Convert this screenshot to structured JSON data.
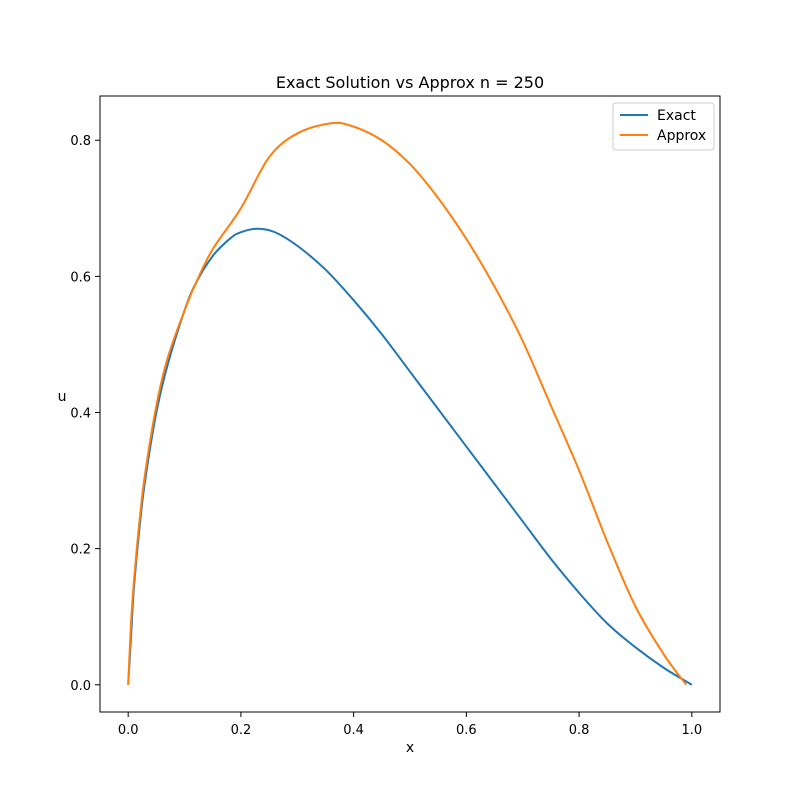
{
  "chart_data": {
    "type": "line",
    "title": "Exact Solution vs Approx n = 250",
    "xlabel": "x",
    "ylabel": "u",
    "xlim": [
      -0.05,
      1.05
    ],
    "ylim": [
      -0.04,
      0.865
    ],
    "xticks": [
      "0.0",
      "0.2",
      "0.4",
      "0.6",
      "0.8",
      "1.0"
    ],
    "yticks": [
      "0.0",
      "0.2",
      "0.4",
      "0.6",
      "0.8"
    ],
    "grid": false,
    "legend_position": "top-right",
    "series": [
      {
        "name": "Exact",
        "color": "#1f77b4",
        "x": [
          0.0,
          0.005,
          0.01,
          0.02,
          0.03,
          0.05,
          0.07,
          0.1,
          0.12,
          0.15,
          0.18,
          0.2,
          0.23,
          0.26,
          0.3,
          0.35,
          0.4,
          0.45,
          0.5,
          0.55,
          0.6,
          0.65,
          0.7,
          0.75,
          0.8,
          0.85,
          0.9,
          0.95,
          1.0
        ],
        "y": [
          0.0,
          0.07,
          0.14,
          0.23,
          0.3,
          0.4,
          0.47,
          0.55,
          0.59,
          0.63,
          0.655,
          0.665,
          0.67,
          0.665,
          0.645,
          0.61,
          0.565,
          0.515,
          0.46,
          0.405,
          0.35,
          0.295,
          0.24,
          0.185,
          0.135,
          0.09,
          0.055,
          0.025,
          0.0
        ]
      },
      {
        "name": "Approx",
        "color": "#ff7f0e",
        "x": [
          0.0,
          0.005,
          0.01,
          0.02,
          0.03,
          0.05,
          0.07,
          0.1,
          0.12,
          0.15,
          0.2,
          0.25,
          0.3,
          0.36,
          0.4,
          0.45,
          0.5,
          0.55,
          0.6,
          0.65,
          0.7,
          0.75,
          0.8,
          0.85,
          0.9,
          0.95,
          0.99
        ],
        "y": [
          0.0,
          0.09,
          0.15,
          0.24,
          0.31,
          0.41,
          0.48,
          0.55,
          0.59,
          0.64,
          0.7,
          0.775,
          0.81,
          0.825,
          0.82,
          0.8,
          0.765,
          0.715,
          0.655,
          0.585,
          0.505,
          0.41,
          0.315,
          0.21,
          0.115,
          0.045,
          0.0
        ]
      }
    ]
  }
}
